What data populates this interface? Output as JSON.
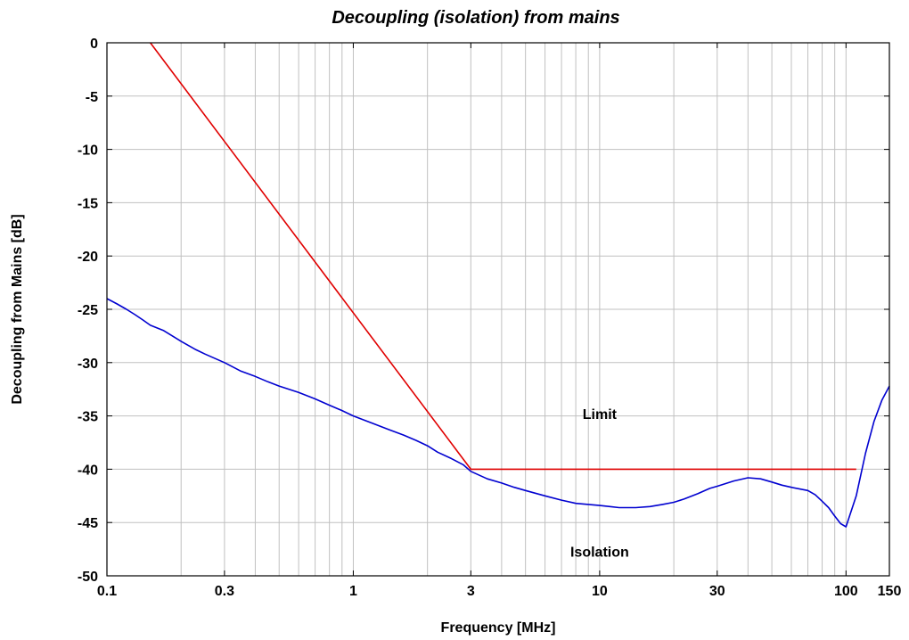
{
  "chart_data": {
    "type": "line",
    "title": "Decoupling (isolation) from mains",
    "xlabel": "Frequency [MHz]",
    "ylabel": "Decoupling from Mains [dB]",
    "xscale": "log",
    "xlim": [
      0.1,
      150
    ],
    "ylim": [
      -50,
      0
    ],
    "grid": true,
    "x_ticks": [
      {
        "value": 0.1,
        "label": "0.1"
      },
      {
        "value": 0.3,
        "label": "0.3"
      },
      {
        "value": 1,
        "label": "1"
      },
      {
        "value": 3,
        "label": "3"
      },
      {
        "value": 10,
        "label": "10"
      },
      {
        "value": 30,
        "label": "30"
      },
      {
        "value": 100,
        "label": "100"
      },
      {
        "value": 150,
        "label": "150"
      }
    ],
    "y_ticks": [
      {
        "value": 0,
        "label": "0"
      },
      {
        "value": -5,
        "label": "-5"
      },
      {
        "value": -10,
        "label": "-10"
      },
      {
        "value": -15,
        "label": "-15"
      },
      {
        "value": -20,
        "label": "-20"
      },
      {
        "value": -25,
        "label": "-25"
      },
      {
        "value": -30,
        "label": "-30"
      },
      {
        "value": -35,
        "label": "-35"
      },
      {
        "value": -40,
        "label": "-40"
      },
      {
        "value": -45,
        "label": "-45"
      },
      {
        "value": -50,
        "label": "-50"
      }
    ],
    "series": [
      {
        "name": "Limit",
        "color": "#e00000",
        "x": [
          0.15,
          3,
          110
        ],
        "y": [
          0,
          -40,
          -40
        ]
      },
      {
        "name": "Isolation",
        "color": "#0000d0",
        "x": [
          0.1,
          0.11,
          0.12,
          0.13,
          0.14,
          0.15,
          0.17,
          0.2,
          0.23,
          0.25,
          0.3,
          0.35,
          0.4,
          0.45,
          0.5,
          0.6,
          0.7,
          0.8,
          0.9,
          1,
          1.2,
          1.4,
          1.6,
          1.8,
          2,
          2.2,
          2.5,
          2.8,
          3,
          3.5,
          4,
          4.5,
          5,
          6,
          7,
          8,
          9,
          10,
          11,
          12,
          14,
          16,
          18,
          20,
          22,
          25,
          28,
          30,
          35,
          40,
          45,
          50,
          55,
          60,
          70,
          75,
          80,
          85,
          90,
          95,
          100,
          110,
          120,
          130,
          140,
          150
        ],
        "y": [
          -24,
          -24.5,
          -25,
          -25.5,
          -26,
          -26.5,
          -27,
          -28,
          -28.8,
          -29.2,
          -30,
          -30.8,
          -31.3,
          -31.8,
          -32.2,
          -32.8,
          -33.4,
          -34,
          -34.5,
          -35,
          -35.7,
          -36.3,
          -36.8,
          -37.3,
          -37.8,
          -38.4,
          -39,
          -39.6,
          -40.2,
          -40.9,
          -41.3,
          -41.7,
          -42,
          -42.5,
          -42.9,
          -43.2,
          -43.3,
          -43.4,
          -43.5,
          -43.6,
          -43.6,
          -43.5,
          -43.3,
          -43.1,
          -42.8,
          -42.3,
          -41.8,
          -41.6,
          -41.1,
          -40.8,
          -40.9,
          -41.2,
          -41.5,
          -41.7,
          -42,
          -42.4,
          -43,
          -43.6,
          -44.4,
          -45.1,
          -45.4,
          -42.5,
          -38.5,
          -35.5,
          -33.5,
          -32.2
        ]
      }
    ],
    "annotations": [
      {
        "text": "Limit",
        "x": 10,
        "y": -35.3
      },
      {
        "text": "Isolation",
        "x": 10,
        "y": -48.2
      }
    ]
  }
}
